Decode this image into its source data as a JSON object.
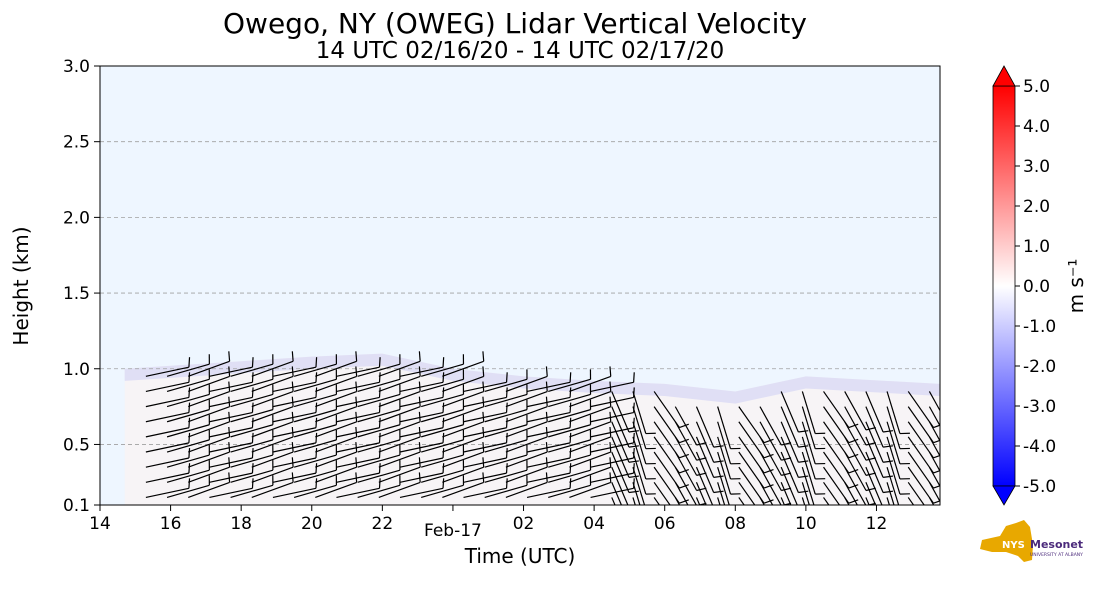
{
  "chart_data": {
    "type": "heatmap",
    "title": "Owego, NY (OWEG) Lidar Vertical Velocity",
    "subtitle": "14 UTC 02/16/20 - 14 UTC 02/17/20",
    "xlabel": "Time (UTC)",
    "ylabel": "Height (km)",
    "x_ticks": [
      "14",
      "16",
      "18",
      "20",
      "22",
      "Feb-17",
      "02",
      "04",
      "06",
      "08",
      "10",
      "12"
    ],
    "x_tick_hours": [
      14,
      16,
      18,
      20,
      22,
      24,
      26,
      28,
      30,
      32,
      34,
      36
    ],
    "xlim_hours": [
      14,
      37.8
    ],
    "y_ticks": [
      "0.1",
      "0.5",
      "1.0",
      "1.5",
      "2.0",
      "2.5",
      "3.0"
    ],
    "y_tick_values": [
      0.1,
      0.5,
      1.0,
      1.5,
      2.0,
      2.5,
      3.0
    ],
    "ylim": [
      0.1,
      3.0
    ],
    "grid": "horizontal dashed",
    "background_color": "#eef6ff",
    "colorbar": {
      "label": "m s⁻¹",
      "ticks": [
        "5.0",
        "4.0",
        "3.0",
        "2.0",
        "1.0",
        "0.0",
        "-1.0",
        "-2.0",
        "-3.0",
        "-4.0",
        "-5.0"
      ],
      "tick_values": [
        5,
        4,
        3,
        2,
        1,
        0,
        -1,
        -2,
        -3,
        -4,
        -5
      ],
      "range": [
        -5,
        5
      ],
      "colors": {
        "max": "#ff0000",
        "mid": "#ffffff",
        "min": "#0000ff"
      }
    },
    "data_top_km": [
      {
        "hour": 14.7,
        "km": 1.0
      },
      {
        "hour": 16.0,
        "km": 1.02
      },
      {
        "hour": 18.0,
        "km": 1.05
      },
      {
        "hour": 20.0,
        "km": 1.08
      },
      {
        "hour": 22.0,
        "km": 1.1
      },
      {
        "hour": 24.0,
        "km": 1.0
      },
      {
        "hour": 26.0,
        "km": 0.95
      },
      {
        "hour": 28.0,
        "km": 0.92
      },
      {
        "hour": 30.0,
        "km": 0.9
      },
      {
        "hour": 32.0,
        "km": 0.85
      },
      {
        "hour": 34.0,
        "km": 0.95
      },
      {
        "hour": 37.8,
        "km": 0.9
      }
    ],
    "wind_barb_columns_hours": [
      15.3,
      15.9,
      16.5,
      17.1,
      17.7,
      18.3,
      18.9,
      19.5,
      20.1,
      20.7,
      21.3,
      21.9,
      22.5,
      23.1,
      23.7,
      24.3,
      24.9,
      25.5,
      26.1,
      26.7,
      27.3,
      27.9,
      28.5,
      29.1,
      29.7,
      30.3,
      30.9,
      31.5,
      32.1,
      32.7,
      33.3,
      33.9,
      34.5,
      35.1,
      35.7,
      36.3,
      36.9,
      37.5
    ]
  },
  "logo": {
    "text": "NYS Mesonet",
    "subtext": "UNIVERSITY AT ALBANY"
  }
}
